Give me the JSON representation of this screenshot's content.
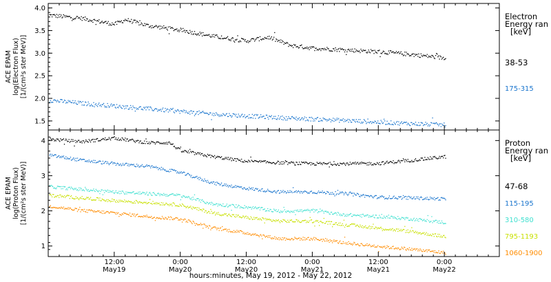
{
  "x_axis_title": "hours:minutes, May 19, 2012 - May 22, 2012",
  "x_ticks": [
    {
      "t": 12,
      "time": "12:00",
      "day": "May19"
    },
    {
      "t": 24,
      "time": "0:00",
      "day": "May20"
    },
    {
      "t": 36,
      "time": "12:00",
      "day": "May20"
    },
    {
      "t": 48,
      "time": "0:00",
      "day": "May21"
    },
    {
      "t": 60,
      "time": "12:00",
      "day": "May21"
    },
    {
      "t": 72,
      "time": "0:00",
      "day": "May22"
    }
  ],
  "x_range_hours": [
    0,
    82
  ],
  "panels": {
    "electron": {
      "ylabel": [
        "ACE EPAM",
        "log(Electron Flux)",
        "[1/(cm²s ster MeV)]"
      ],
      "legend_title": [
        "Electron",
        "Energy ran",
        "[keV]"
      ]
    },
    "proton": {
      "ylabel": [
        "ACE EPAM",
        "log(Proton Flux)",
        "[1/(cm²s ster MeV)]"
      ],
      "legend_title": [
        "Proton",
        "Energy ran",
        "[keV]"
      ]
    }
  },
  "chart_data": [
    {
      "type": "scatter",
      "title": "",
      "xlabel": "hours:minutes, May 19, 2012 - May 22, 2012",
      "ylabel": "ACE EPAM log(Electron Flux) [1/(cm²s ster MeV)]",
      "x_units": "hours since 00:00 May 19, 2012",
      "xlim": [
        0,
        82
      ],
      "ylim": [
        1.3,
        4.1
      ],
      "yticks": [
        1.5,
        2.0,
        2.5,
        3.0,
        3.5,
        4.0
      ],
      "legend": "right",
      "series": [
        {
          "name": "38-53",
          "color": "#000000",
          "x": [
            0,
            6,
            12,
            14,
            18,
            24,
            30,
            36,
            40,
            44,
            48,
            54,
            60,
            66,
            72
          ],
          "y": [
            3.85,
            3.78,
            3.65,
            3.75,
            3.62,
            3.52,
            3.38,
            3.28,
            3.36,
            3.18,
            3.12,
            3.08,
            3.04,
            2.98,
            2.9
          ]
        },
        {
          "name": "175-315",
          "color": "#1874cd",
          "x": [
            0,
            6,
            12,
            18,
            24,
            30,
            36,
            42,
            48,
            54,
            60,
            66,
            72
          ],
          "y": [
            1.97,
            1.9,
            1.84,
            1.78,
            1.72,
            1.66,
            1.62,
            1.58,
            1.55,
            1.52,
            1.48,
            1.45,
            1.42
          ]
        }
      ]
    },
    {
      "type": "scatter",
      "title": "",
      "xlabel": "hours:minutes, May 19, 2012 - May 22, 2012",
      "ylabel": "ACE EPAM log(Proton Flux) [1/(cm²s ster MeV)]",
      "x_units": "hours since 00:00 May 19, 2012",
      "xlim": [
        0,
        82
      ],
      "ylim": [
        0.7,
        4.3
      ],
      "yticks": [
        1,
        2,
        3,
        4
      ],
      "legend": "right",
      "series": [
        {
          "name": "47-68",
          "color": "#000000",
          "x": [
            0,
            6,
            12,
            18,
            22,
            24,
            30,
            36,
            42,
            48,
            54,
            60,
            66,
            72
          ],
          "y": [
            4.05,
            3.98,
            4.08,
            3.95,
            3.95,
            3.72,
            3.55,
            3.42,
            3.38,
            3.35,
            3.35,
            3.36,
            3.45,
            3.55
          ]
        },
        {
          "name": "115-195",
          "color": "#1874cd",
          "x": [
            0,
            6,
            12,
            18,
            24,
            30,
            36,
            42,
            48,
            54,
            60,
            66,
            72
          ],
          "y": [
            3.6,
            3.45,
            3.35,
            3.28,
            3.1,
            2.8,
            2.65,
            2.55,
            2.55,
            2.5,
            2.4,
            2.38,
            2.35
          ]
        },
        {
          "name": "310-580",
          "color": "#40e0d0",
          "x": [
            0,
            6,
            12,
            18,
            24,
            30,
            36,
            42,
            48,
            54,
            60,
            66,
            72
          ],
          "y": [
            2.7,
            2.62,
            2.55,
            2.5,
            2.45,
            2.2,
            2.12,
            2.0,
            2.02,
            1.9,
            1.85,
            1.78,
            1.68
          ]
        },
        {
          "name": "795-1193",
          "color": "#c8e000",
          "x": [
            0,
            6,
            12,
            18,
            24,
            30,
            36,
            42,
            48,
            54,
            60,
            66,
            72
          ],
          "y": [
            2.45,
            2.38,
            2.3,
            2.25,
            2.18,
            1.95,
            1.82,
            1.72,
            1.72,
            1.62,
            1.52,
            1.42,
            1.28
          ]
        },
        {
          "name": "1060-1900",
          "color": "#ff8c00",
          "x": [
            0,
            6,
            12,
            18,
            24,
            30,
            36,
            42,
            48,
            54,
            60,
            66,
            72
          ],
          "y": [
            2.15,
            2.02,
            1.95,
            1.85,
            1.78,
            1.52,
            1.38,
            1.22,
            1.22,
            1.1,
            1.0,
            0.92,
            0.82
          ]
        }
      ]
    }
  ]
}
